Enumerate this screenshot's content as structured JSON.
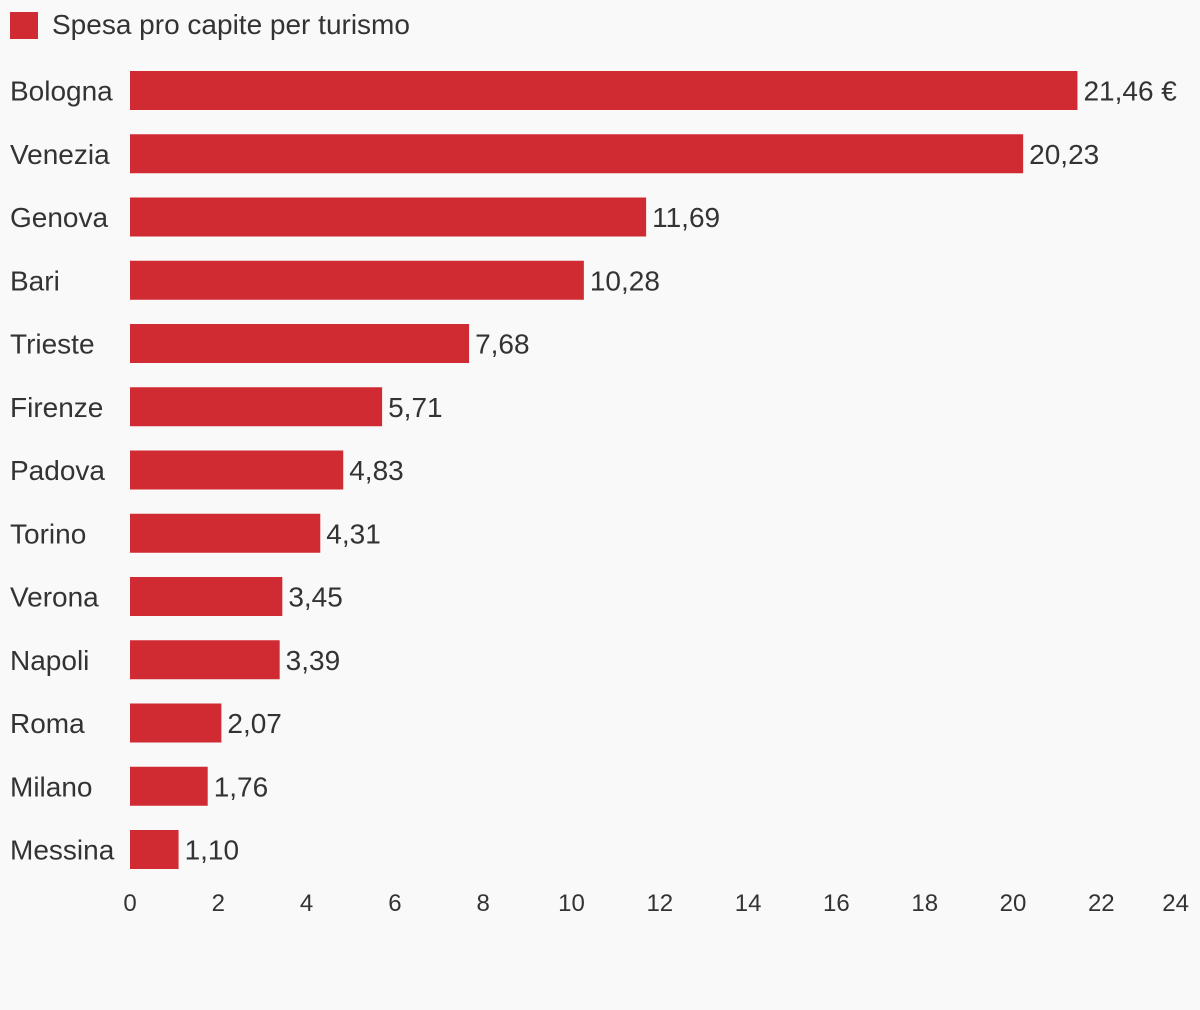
{
  "chart_data": {
    "type": "bar",
    "orientation": "horizontal",
    "categories": [
      "Bologna",
      "Venezia",
      "Genova",
      "Bari",
      "Trieste",
      "Firenze",
      "Padova",
      "Torino",
      "Verona",
      "Napoli",
      "Roma",
      "Milano",
      "Messina"
    ],
    "series": [
      {
        "name": "Spesa pro capite per turismo",
        "values": [
          21.46,
          20.23,
          11.69,
          10.28,
          7.68,
          5.71,
          4.83,
          4.31,
          3.45,
          3.39,
          2.07,
          1.76,
          1.1
        ],
        "labels": [
          "21,46 €",
          "20,23",
          "11,69",
          "10,28",
          "7,68",
          "5,71",
          "4,83",
          "4,31",
          "3,45",
          "3,39",
          "2,07",
          "1,76",
          "1,10"
        ],
        "color": "#d02b33"
      }
    ],
    "xlim": [
      0,
      24
    ],
    "xticks": [
      0,
      2,
      4,
      6,
      8,
      10,
      12,
      14,
      16,
      18,
      20,
      22,
      24
    ],
    "grid": false,
    "legend_position": "top-left"
  }
}
